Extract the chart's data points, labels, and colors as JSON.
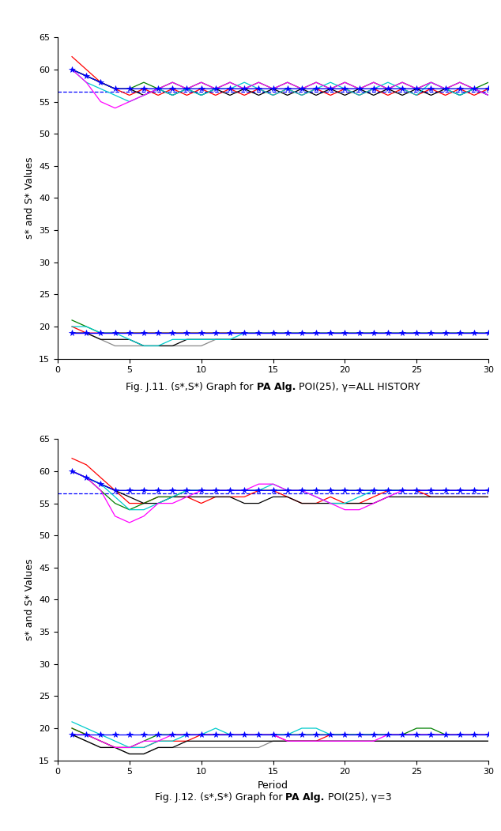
{
  "fig1_title_pre": "Fig. J.11. (s*,S*) Graph for ",
  "fig1_title_bold": "PA Alg.",
  "fig1_title_post": " POI(25), γ=ALL HISTORY",
  "fig2_title_pre": "Fig. J.12. (s*,S*) Graph for ",
  "fig2_title_bold": "PA Alg.",
  "fig2_title_post": " POI(25), γ=3",
  "ylabel": "s* and S* Values",
  "xlabel": "Period",
  "xlim": [
    0,
    30
  ],
  "ylim": [
    15,
    65
  ],
  "yticks": [
    15,
    20,
    25,
    30,
    35,
    40,
    45,
    50,
    55,
    60,
    65
  ],
  "xticks": [
    0,
    5,
    10,
    15,
    20,
    25,
    30
  ],
  "dashed_line_y": 56.5,
  "background": "#ffffff",
  "chart1": {
    "S_blue_star": [
      60,
      59,
      58,
      57,
      57,
      57,
      57,
      57,
      57,
      57,
      57,
      57,
      57,
      57,
      57,
      57,
      57,
      57,
      57,
      57,
      57,
      57,
      57,
      57,
      57,
      57,
      57,
      57,
      57,
      57
    ],
    "S_red": [
      62,
      60,
      58,
      57,
      56,
      57,
      56,
      57,
      56,
      57,
      56,
      57,
      56,
      57,
      56,
      57,
      56,
      57,
      56,
      57,
      56,
      57,
      56,
      57,
      56,
      57,
      56,
      57,
      56,
      57
    ],
    "S_green": [
      60,
      59,
      58,
      57,
      57,
      58,
      57,
      58,
      57,
      58,
      57,
      58,
      57,
      58,
      57,
      58,
      57,
      58,
      57,
      58,
      57,
      58,
      57,
      58,
      57,
      58,
      57,
      58,
      57,
      58
    ],
    "S_black": [
      60,
      59,
      58,
      57,
      57,
      56,
      57,
      56,
      57,
      56,
      57,
      56,
      57,
      56,
      57,
      56,
      57,
      56,
      57,
      56,
      57,
      56,
      57,
      56,
      57,
      56,
      57,
      56,
      57,
      56
    ],
    "S_cyan": [
      60,
      58,
      57,
      56,
      55,
      56,
      57,
      56,
      57,
      56,
      57,
      57,
      58,
      57,
      56,
      57,
      56,
      57,
      58,
      57,
      56,
      57,
      58,
      57,
      56,
      58,
      57,
      56,
      57,
      56
    ],
    "S_magenta": [
      60,
      58,
      55,
      54,
      55,
      56,
      57,
      58,
      57,
      58,
      57,
      58,
      57,
      58,
      57,
      58,
      57,
      58,
      57,
      58,
      57,
      58,
      57,
      58,
      57,
      58,
      57,
      58,
      57,
      56
    ],
    "S_gray": [
      60,
      59,
      58,
      57,
      57,
      57,
      57,
      57,
      57,
      57,
      57,
      57,
      57,
      57,
      57,
      57,
      57,
      57,
      57,
      57,
      57,
      57,
      57,
      57,
      57,
      57,
      57,
      57,
      57,
      57
    ],
    "s_blue_star": [
      19,
      19,
      19,
      19,
      19,
      19,
      19,
      19,
      19,
      19,
      19,
      19,
      19,
      19,
      19,
      19,
      19,
      19,
      19,
      19,
      19,
      19,
      19,
      19,
      19,
      19,
      19,
      19,
      19,
      19
    ],
    "s_red": [
      20,
      19,
      19,
      19,
      19,
      19,
      19,
      19,
      19,
      19,
      19,
      19,
      19,
      19,
      19,
      19,
      19,
      19,
      19,
      19,
      19,
      19,
      19,
      19,
      19,
      19,
      19,
      19,
      19,
      19
    ],
    "s_green": [
      21,
      20,
      19,
      19,
      19,
      19,
      19,
      19,
      19,
      19,
      19,
      19,
      19,
      19,
      19,
      19,
      19,
      19,
      19,
      19,
      19,
      19,
      19,
      19,
      19,
      19,
      19,
      19,
      19,
      19
    ],
    "s_black": [
      19,
      19,
      18,
      18,
      18,
      17,
      17,
      17,
      18,
      18,
      18,
      18,
      18,
      18,
      18,
      18,
      18,
      18,
      18,
      18,
      18,
      18,
      18,
      18,
      18,
      18,
      18,
      18,
      18,
      18
    ],
    "s_cyan": [
      20,
      20,
      19,
      19,
      18,
      17,
      17,
      18,
      18,
      18,
      18,
      18,
      19,
      19,
      19,
      19,
      19,
      19,
      19,
      19,
      19,
      19,
      19,
      19,
      19,
      19,
      19,
      19,
      19,
      19
    ],
    "s_magenta": [
      19,
      19,
      19,
      19,
      19,
      19,
      19,
      19,
      19,
      19,
      19,
      19,
      19,
      19,
      19,
      19,
      19,
      19,
      19,
      19,
      19,
      19,
      19,
      19,
      19,
      19,
      19,
      19,
      19,
      19
    ],
    "s_gray": [
      19,
      19,
      18,
      17,
      17,
      17,
      17,
      17,
      17,
      17,
      18,
      18,
      18,
      18,
      18,
      18,
      18,
      18,
      18,
      18,
      18,
      18,
      18,
      18,
      18,
      18,
      18,
      18,
      18,
      18
    ]
  },
  "chart2": {
    "S_blue_star": [
      60,
      59,
      58,
      57,
      57,
      57,
      57,
      57,
      57,
      57,
      57,
      57,
      57,
      57,
      57,
      57,
      57,
      57,
      57,
      57,
      57,
      57,
      57,
      57,
      57,
      57,
      57,
      57,
      57,
      57
    ],
    "S_red": [
      62,
      61,
      59,
      57,
      55,
      55,
      56,
      56,
      56,
      55,
      56,
      56,
      56,
      57,
      57,
      56,
      55,
      55,
      56,
      55,
      55,
      56,
      57,
      57,
      57,
      56,
      56,
      56,
      56,
      56
    ],
    "S_green": [
      60,
      59,
      57,
      55,
      54,
      55,
      56,
      56,
      57,
      57,
      57,
      57,
      57,
      57,
      57,
      57,
      57,
      57,
      57,
      57,
      57,
      57,
      57,
      57,
      57,
      57,
      57,
      57,
      57,
      57
    ],
    "S_black": [
      60,
      59,
      58,
      57,
      56,
      55,
      55,
      56,
      56,
      56,
      56,
      56,
      55,
      55,
      56,
      56,
      55,
      55,
      55,
      55,
      55,
      55,
      56,
      56,
      56,
      56,
      56,
      56,
      56,
      56
    ],
    "S_cyan": [
      60,
      59,
      58,
      56,
      54,
      54,
      55,
      56,
      57,
      57,
      57,
      57,
      57,
      57,
      58,
      57,
      57,
      56,
      55,
      55,
      56,
      57,
      57,
      57,
      57,
      57,
      57,
      57,
      57,
      57
    ],
    "S_magenta": [
      60,
      59,
      57,
      53,
      52,
      53,
      55,
      55,
      56,
      57,
      57,
      57,
      57,
      58,
      58,
      57,
      57,
      56,
      55,
      54,
      54,
      55,
      56,
      57,
      57,
      57,
      57,
      57,
      57,
      57
    ],
    "S_gray": [
      60,
      59,
      58,
      57,
      57,
      57,
      57,
      57,
      57,
      57,
      57,
      57,
      57,
      57,
      57,
      57,
      57,
      57,
      57,
      57,
      57,
      57,
      57,
      57,
      57,
      57,
      57,
      57,
      57,
      57
    ],
    "s_blue_star": [
      19,
      19,
      19,
      19,
      19,
      19,
      19,
      19,
      19,
      19,
      19,
      19,
      19,
      19,
      19,
      19,
      19,
      19,
      19,
      19,
      19,
      19,
      19,
      19,
      19,
      19,
      19,
      19,
      19,
      19
    ],
    "s_red": [
      20,
      19,
      18,
      17,
      17,
      17,
      18,
      18,
      18,
      19,
      19,
      19,
      19,
      19,
      19,
      18,
      18,
      18,
      19,
      19,
      19,
      19,
      19,
      19,
      19,
      19,
      19,
      19,
      19,
      19
    ],
    "s_green": [
      20,
      19,
      18,
      17,
      17,
      18,
      19,
      19,
      19,
      19,
      19,
      19,
      19,
      19,
      19,
      19,
      19,
      19,
      19,
      19,
      19,
      19,
      19,
      19,
      20,
      20,
      19,
      19,
      19,
      19
    ],
    "s_black": [
      19,
      18,
      17,
      17,
      16,
      16,
      17,
      17,
      18,
      18,
      18,
      18,
      18,
      18,
      18,
      18,
      18,
      18,
      18,
      18,
      18,
      18,
      18,
      18,
      18,
      18,
      18,
      18,
      18,
      18
    ],
    "s_cyan": [
      21,
      20,
      19,
      18,
      17,
      17,
      18,
      18,
      19,
      19,
      20,
      19,
      19,
      19,
      19,
      19,
      20,
      20,
      19,
      19,
      19,
      19,
      19,
      19,
      19,
      19,
      19,
      19,
      19,
      19
    ],
    "s_magenta": [
      19,
      19,
      18,
      17,
      17,
      18,
      18,
      19,
      19,
      19,
      19,
      19,
      19,
      19,
      19,
      18,
      18,
      18,
      18,
      18,
      18,
      18,
      19,
      19,
      19,
      19,
      19,
      19,
      19,
      19
    ],
    "s_gray": [
      19,
      18,
      17,
      17,
      16,
      16,
      17,
      17,
      17,
      17,
      17,
      17,
      17,
      17,
      18,
      18,
      18,
      18,
      18,
      18,
      18,
      18,
      18,
      18,
      18,
      18,
      18,
      18,
      18,
      18
    ]
  },
  "colors": {
    "blue_star": "#0000ff",
    "red": "#ff0000",
    "green": "#008000",
    "black": "#000000",
    "cyan": "#00cccc",
    "magenta": "#ff00ff",
    "gray": "#888888"
  },
  "dashed_color": "#0000ff",
  "caption_fontsize": 9,
  "tick_fontsize": 8,
  "label_fontsize": 9
}
